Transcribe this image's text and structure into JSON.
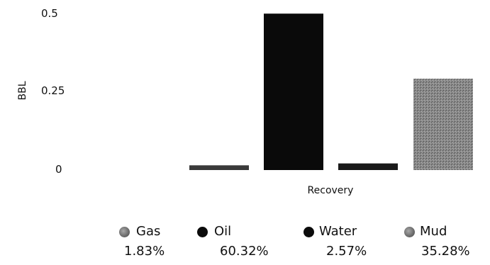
{
  "chart_data": {
    "type": "bar",
    "title": "",
    "xlabel": "Recovery",
    "ylabel": "BBL",
    "ylim": [
      0,
      0.5
    ],
    "yticks": [
      "0",
      "0.25",
      "0.5"
    ],
    "grid": false,
    "legend_placement": "bottom",
    "categories": [
      "Gas",
      "Oil",
      "Water",
      "Mud"
    ],
    "values": [
      0.015,
      0.495,
      0.021,
      0.289
    ],
    "colors": [
      "#3a3a3a",
      "#0a0a0a",
      "#1a1a1a",
      "#7e7e7e"
    ],
    "legend": [
      {
        "name": "Gas",
        "percent": "1.83%",
        "icon": "gray-dot-icon"
      },
      {
        "name": "Oil",
        "percent": "60.32%",
        "icon": "black-dot-icon"
      },
      {
        "name": "Water",
        "percent": "2.57%",
        "icon": "black-dot-icon"
      },
      {
        "name": "Mud",
        "percent": "35.28%",
        "icon": "gray-dot-icon"
      }
    ]
  }
}
